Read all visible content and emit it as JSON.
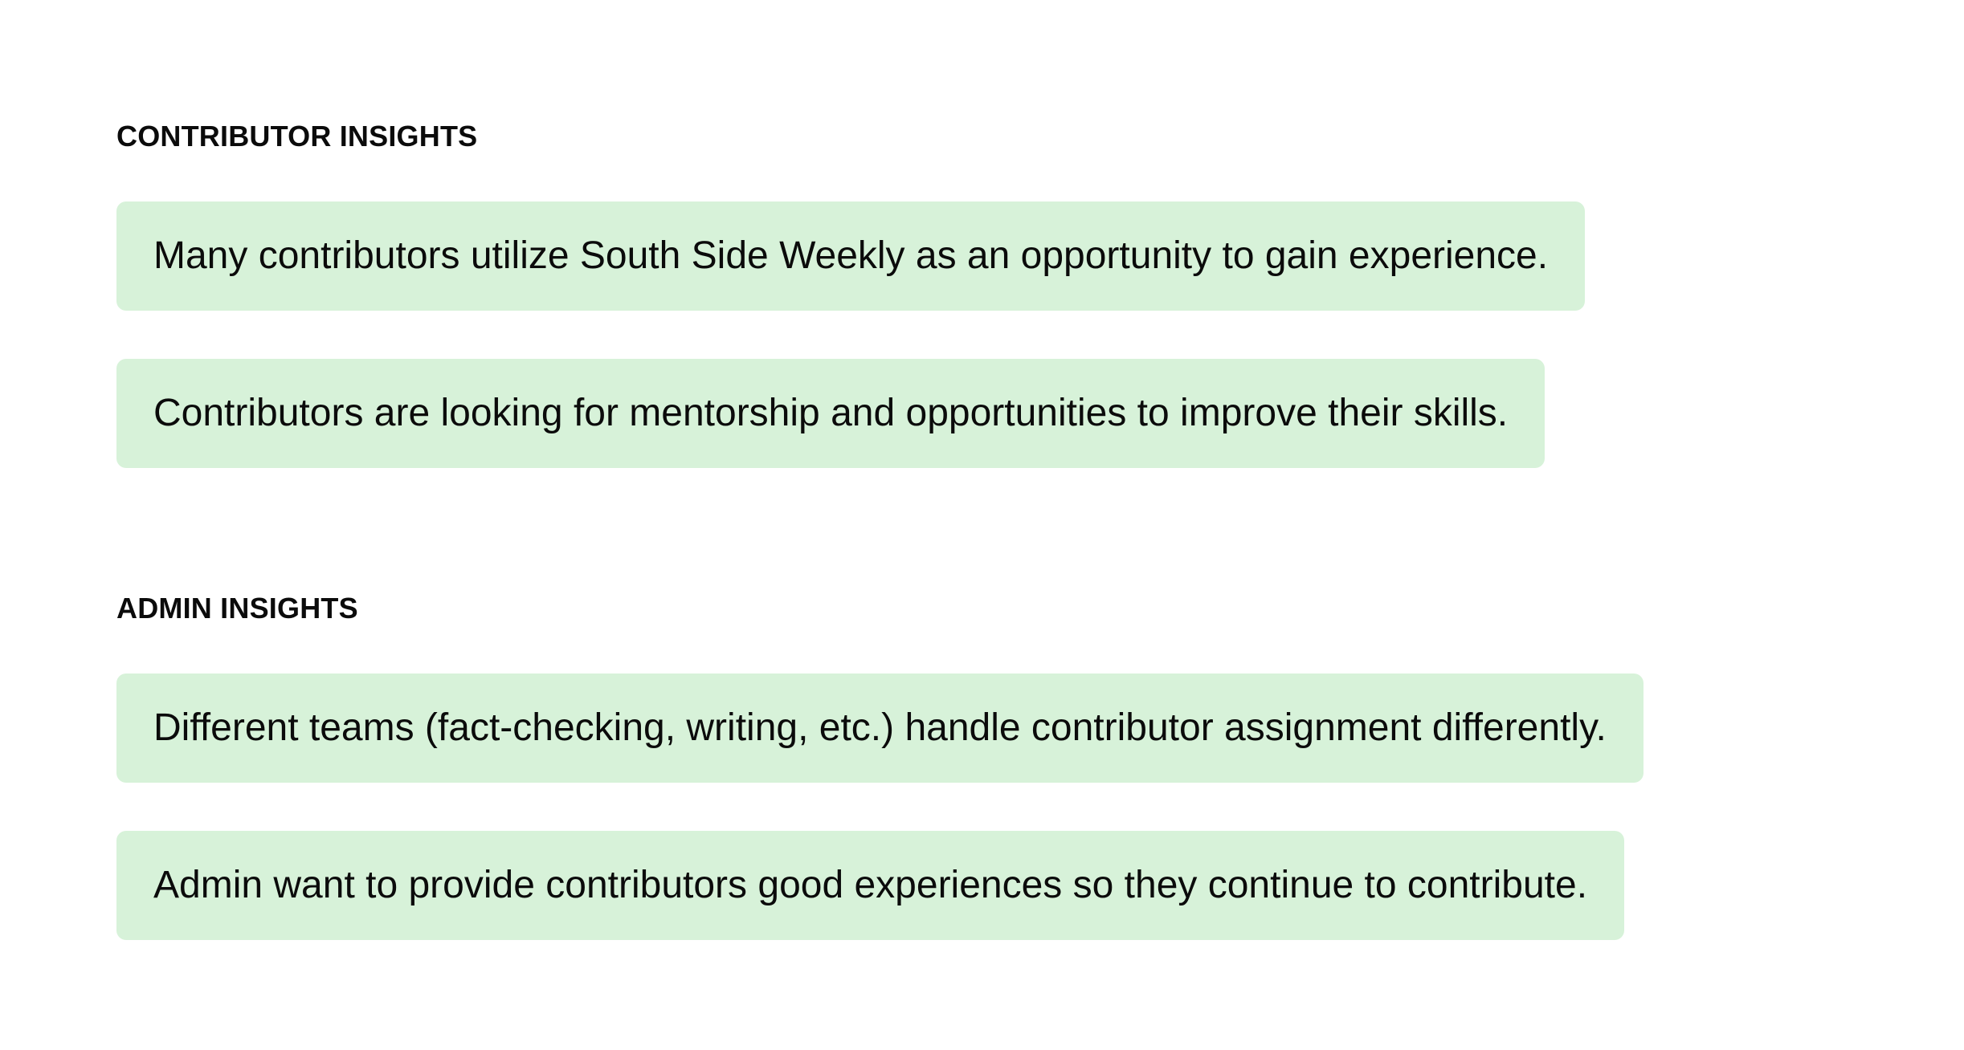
{
  "contributor_insights": {
    "heading": "CONTRIBUTOR INSIGHTS",
    "items": [
      "Many contributors utilize South Side Weekly as an opportunity to gain experience.",
      "Contributors are looking for mentorship and opportunities to improve their skills."
    ]
  },
  "admin_insights": {
    "heading": "ADMIN INSIGHTS",
    "items": [
      "Different teams (fact-checking, writing, etc.) handle contributor assignment differently.",
      "Admin want to provide contributors good experiences so they continue to contribute."
    ]
  },
  "colors": {
    "card_background": "#d7f2d9",
    "text": "#0b0b0b",
    "page_background": "#ffffff"
  }
}
